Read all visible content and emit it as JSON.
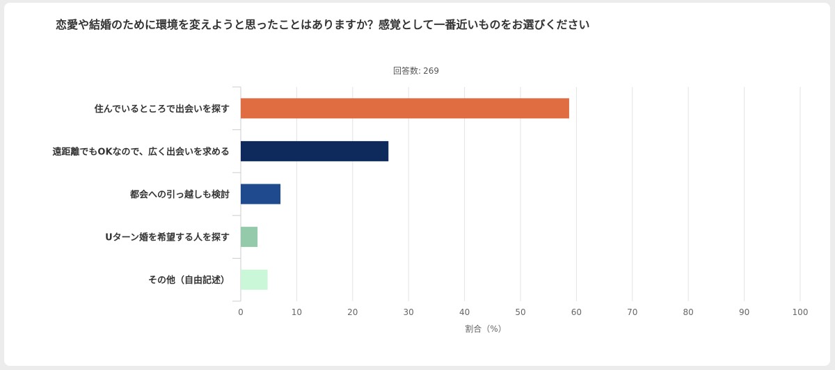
{
  "chart_data": {
    "type": "bar",
    "orientation": "horizontal",
    "title": "恋愛や結婚のために環境を変えようと思ったことはありますか？感覚として一番近いものをお選びください",
    "subtitle_label": "回答数",
    "subtitle_value": "269",
    "categories": [
      "住んでいるところで出会いを探す",
      "遠距離でもOKなので、広く出会いを求める",
      "都会への引っ越しも検討",
      "Uターン婚を希望する人を探す",
      "その他（自由記述）"
    ],
    "values": [
      58.7,
      26.4,
      7.1,
      3.0,
      4.8
    ],
    "colors": [
      "#e06c42",
      "#0e2a5c",
      "#1f4b8e",
      "#94c9a9",
      "#c9f7d8"
    ],
    "xlabel": "割合（%）",
    "xlim": [
      0,
      100
    ],
    "xticks": [
      "0",
      "10",
      "20",
      "30",
      "40",
      "50",
      "60",
      "70",
      "80",
      "90",
      "100"
    ],
    "grid": true
  }
}
